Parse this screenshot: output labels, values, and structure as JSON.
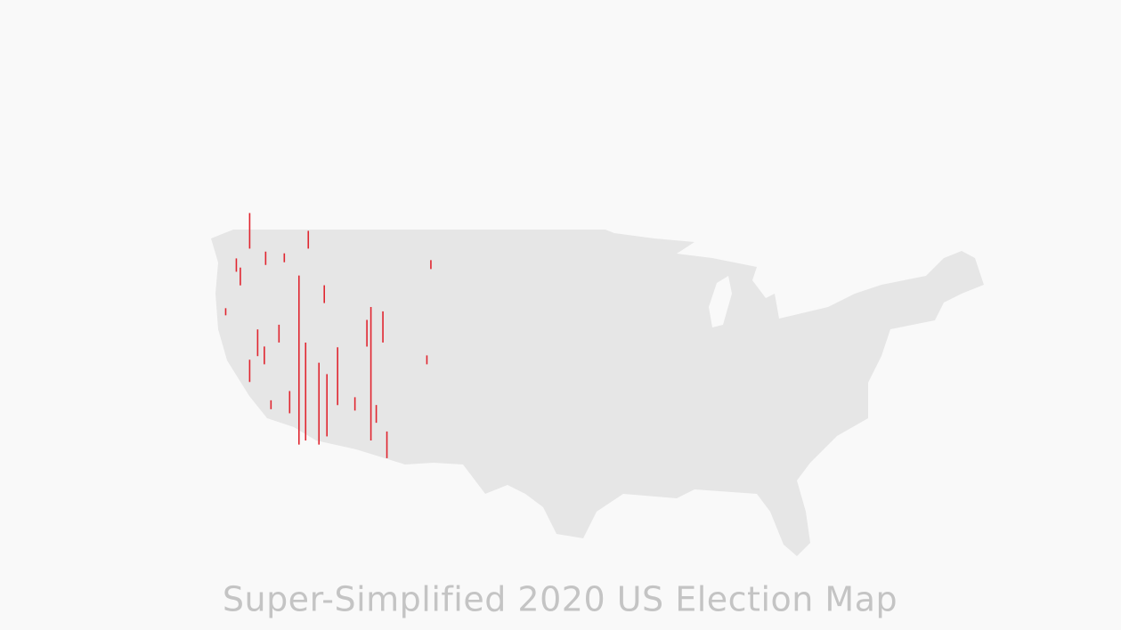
{
  "title": "Super-Simplified 2020 US Election Map",
  "spikes": [
    {
      "lon": -122.1,
      "lat": 47.6,
      "value": 40
    },
    {
      "lon": -118.4,
      "lat": 33.2,
      "value": 190
    },
    {
      "lon": -117.9,
      "lat": 33.5,
      "value": 110
    },
    {
      "lon": -116.9,
      "lat": 33.2,
      "value": 92
    },
    {
      "lon": -116.3,
      "lat": 33.8,
      "value": 70
    },
    {
      "lon": -115.5,
      "lat": 36.1,
      "value": 65
    },
    {
      "lon": -113.0,
      "lat": 33.5,
      "value": 150
    },
    {
      "lon": -112.1,
      "lat": 40.7,
      "value": 35
    },
    {
      "lon": -111.8,
      "lat": 32.2,
      "value": 30
    },
    {
      "lon": -112.6,
      "lat": 34.8,
      "value": 20
    },
    {
      "lon": -121.5,
      "lat": 39.7,
      "value": 30
    },
    {
      "lon": -122.1,
      "lat": 37.8,
      "value": 25
    },
    {
      "lon": -121.0,
      "lat": 39.1,
      "value": 20
    },
    {
      "lon": -119.9,
      "lat": 40.7,
      "value": 20
    },
    {
      "lon": -119.1,
      "lat": 35.5,
      "value": 25
    },
    {
      "lon": -123.1,
      "lat": 45.9,
      "value": 15
    },
    {
      "lon": -122.8,
      "lat": 44.9,
      "value": 20
    },
    {
      "lon": -117.7,
      "lat": 47.6,
      "value": 20
    },
    {
      "lon": -116.5,
      "lat": 43.6,
      "value": 20
    },
    {
      "lon": -114.2,
      "lat": 35.7,
      "value": 15
    },
    {
      "lon": -108.8,
      "lat": 39.1,
      "value": 10
    },
    {
      "lon": -108.5,
      "lat": 46.1,
      "value": 10
    },
    {
      "lon": -119.5,
      "lat": 46.6,
      "value": 10
    },
    {
      "lon": -120.9,
      "lat": 46.4,
      "value": 15
    },
    {
      "lon": -123.9,
      "lat": 42.7,
      "value": 8
    },
    {
      "lon": -120.5,
      "lat": 35.8,
      "value": 10
    },
    {
      "lon": -113.3,
      "lat": 40.4,
      "value": 30
    }
  ]
}
